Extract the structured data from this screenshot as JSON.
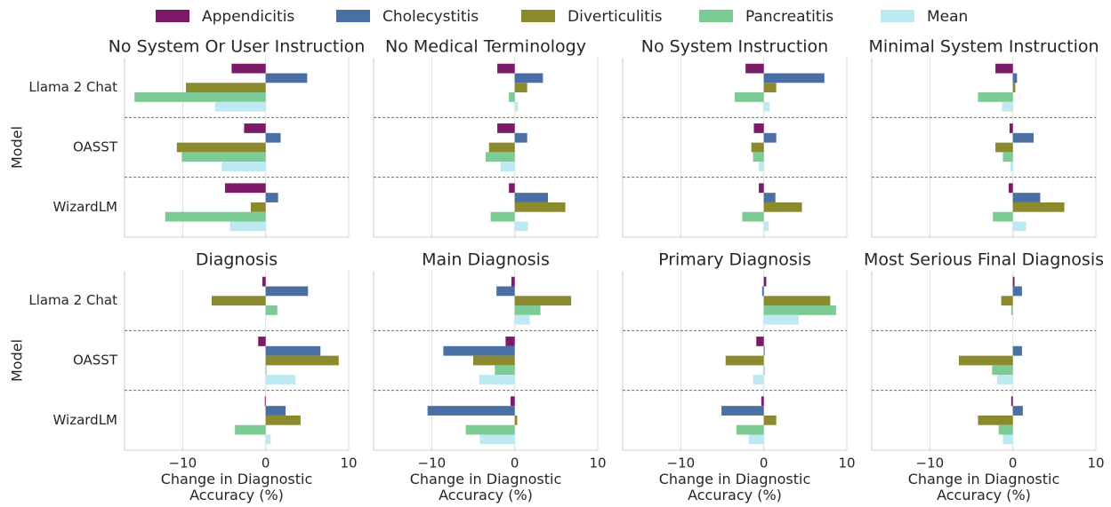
{
  "chart_data": {
    "type": "bar",
    "orientation": "horizontal",
    "categories": [
      "Llama 2 Chat",
      "OASST",
      "WizardLM"
    ],
    "series": [
      {
        "name": "Appendicitis",
        "color": "#7b1a67"
      },
      {
        "name": "Cholecystitis",
        "color": "#4a6fa5"
      },
      {
        "name": "Diverticulitis",
        "color": "#8c8a2e"
      },
      {
        "name": "Pancreatitis",
        "color": "#7ccb95"
      },
      {
        "name": "Mean",
        "color": "#bdeaf2"
      }
    ],
    "xlabel": "Change in Diagnostic Accuracy (%)",
    "ylabel": "Model",
    "xlim": [
      -17,
      10
    ],
    "xticks": [
      {
        "value": -10,
        "label": "−10"
      },
      0,
      10
    ],
    "grid": true,
    "legend": "top",
    "panels": [
      {
        "title": "No System Or User Instruction",
        "values": [
          [
            -4.1,
            -2.6,
            -4.9
          ],
          [
            5.0,
            1.8,
            1.5
          ],
          [
            -9.6,
            -10.7,
            -1.8
          ],
          [
            -15.8,
            -10.1,
            -12.1
          ],
          [
            -6.1,
            -5.3,
            -4.3
          ]
        ]
      },
      {
        "title": "No Medical Terminology",
        "values": [
          [
            -2.1,
            -2.1,
            -0.7
          ],
          [
            3.4,
            1.5,
            4.0
          ],
          [
            1.5,
            -3.1,
            6.1
          ],
          [
            -0.7,
            -3.5,
            -2.9
          ],
          [
            0.4,
            -1.7,
            1.6
          ]
        ]
      },
      {
        "title": "No System Instruction",
        "values": [
          [
            -2.2,
            -1.2,
            -0.6
          ],
          [
            7.3,
            1.5,
            1.4
          ],
          [
            1.5,
            -1.5,
            4.6
          ],
          [
            -3.5,
            -1.3,
            -2.6
          ],
          [
            0.7,
            -0.6,
            0.6
          ]
        ]
      },
      {
        "title": "Minimal System Instruction",
        "values": [
          [
            -2.1,
            -0.4,
            -0.5
          ],
          [
            0.5,
            2.5,
            3.3
          ],
          [
            0.3,
            -2.1,
            6.2
          ],
          [
            -4.2,
            -1.2,
            -2.4
          ],
          [
            -1.3,
            -0.3,
            1.6
          ]
        ]
      },
      {
        "title": "Diagnosis",
        "values": [
          [
            -0.4,
            -0.9,
            -0.1
          ],
          [
            5.1,
            6.6,
            2.4
          ],
          [
            -6.5,
            8.8,
            4.2
          ],
          [
            1.4,
            0.1,
            -3.7
          ],
          [
            0,
            3.6,
            0.6
          ]
        ]
      },
      {
        "title": "Main Diagnosis",
        "values": [
          [
            -0.4,
            -1.1,
            -0.5
          ],
          [
            -2.2,
            -8.6,
            -10.5
          ],
          [
            6.8,
            -5.0,
            0.3
          ],
          [
            3.1,
            -2.4,
            -5.9
          ],
          [
            1.8,
            -4.3,
            -4.2
          ]
        ]
      },
      {
        "title": "Primary Diagnosis",
        "values": [
          [
            0.3,
            -0.9,
            -0.3
          ],
          [
            -0.2,
            0.1,
            -5.1
          ],
          [
            8.0,
            -4.6,
            1.5
          ],
          [
            8.7,
            0.1,
            -3.3
          ],
          [
            4.2,
            -1.3,
            -1.8
          ]
        ]
      },
      {
        "title": "Most Serious Final Diagnosis",
        "values": [
          [
            0.2,
            0,
            -0.2
          ],
          [
            1.1,
            1.1,
            1.2
          ],
          [
            -1.4,
            -6.5,
            -4.2
          ],
          [
            -0.2,
            -2.5,
            -1.7
          ],
          [
            0,
            -1.9,
            -1.2
          ]
        ]
      }
    ]
  }
}
